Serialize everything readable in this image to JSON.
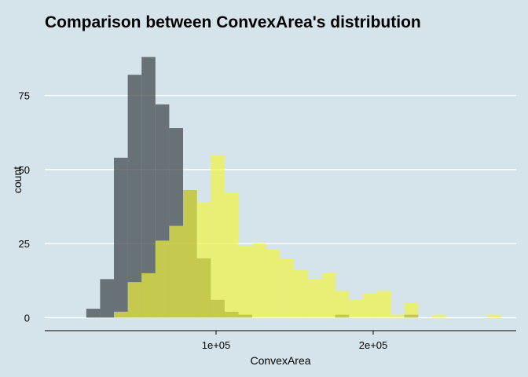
{
  "chart_data": {
    "type": "histogram",
    "title": "Comparison between ConvexArea's distribution",
    "xlabel": "ConvexArea",
    "ylabel": "count",
    "xlim": [
      -9000,
      291000
    ],
    "ylim": [
      -4.4,
      92.4
    ],
    "x_ticks": [
      {
        "value": 100000,
        "label": "1e+05"
      },
      {
        "value": 200000,
        "label": "2e+05"
      }
    ],
    "y_ticks": [
      {
        "value": 0,
        "label": "0"
      },
      {
        "value": 25,
        "label": "25"
      },
      {
        "value": 50,
        "label": "50"
      },
      {
        "value": 75,
        "label": "75"
      }
    ],
    "grid": true,
    "legend": "none",
    "bin_width": 8800,
    "series": [
      {
        "color": "#3e4447",
        "opacity": 0.72,
        "bins": [
          {
            "x0": 17400,
            "count": 3
          },
          {
            "x0": 26200,
            "count": 13
          },
          {
            "x0": 35000,
            "count": 54
          },
          {
            "x0": 43800,
            "count": 82
          },
          {
            "x0": 52600,
            "count": 88
          },
          {
            "x0": 61400,
            "count": 72
          },
          {
            "x0": 70200,
            "count": 64
          },
          {
            "x0": 79000,
            "count": 43
          },
          {
            "x0": 87800,
            "count": 20
          },
          {
            "x0": 96600,
            "count": 6
          },
          {
            "x0": 105400,
            "count": 2
          },
          {
            "x0": 114200,
            "count": 1
          },
          {
            "x0": 175800,
            "count": 1
          },
          {
            "x0": 219800,
            "count": 1
          }
        ]
      },
      {
        "color": "#f2f53c",
        "opacity": 0.68,
        "bins": [
          {
            "x0": 35000,
            "count": 2
          },
          {
            "x0": 43800,
            "count": 12
          },
          {
            "x0": 52600,
            "count": 15
          },
          {
            "x0": 61400,
            "count": 26
          },
          {
            "x0": 70200,
            "count": 31
          },
          {
            "x0": 79000,
            "count": 43
          },
          {
            "x0": 87800,
            "count": 39
          },
          {
            "x0": 96600,
            "count": 55
          },
          {
            "x0": 105400,
            "count": 42
          },
          {
            "x0": 114200,
            "count": 24
          },
          {
            "x0": 123000,
            "count": 25
          },
          {
            "x0": 131800,
            "count": 23
          },
          {
            "x0": 140600,
            "count": 20
          },
          {
            "x0": 149400,
            "count": 16
          },
          {
            "x0": 158200,
            "count": 13
          },
          {
            "x0": 167000,
            "count": 15
          },
          {
            "x0": 175800,
            "count": 9
          },
          {
            "x0": 184600,
            "count": 6
          },
          {
            "x0": 193400,
            "count": 8
          },
          {
            "x0": 202200,
            "count": 9
          },
          {
            "x0": 211000,
            "count": 1
          },
          {
            "x0": 219800,
            "count": 5
          },
          {
            "x0": 237400,
            "count": 1
          },
          {
            "x0": 272600,
            "count": 1
          }
        ]
      }
    ]
  }
}
